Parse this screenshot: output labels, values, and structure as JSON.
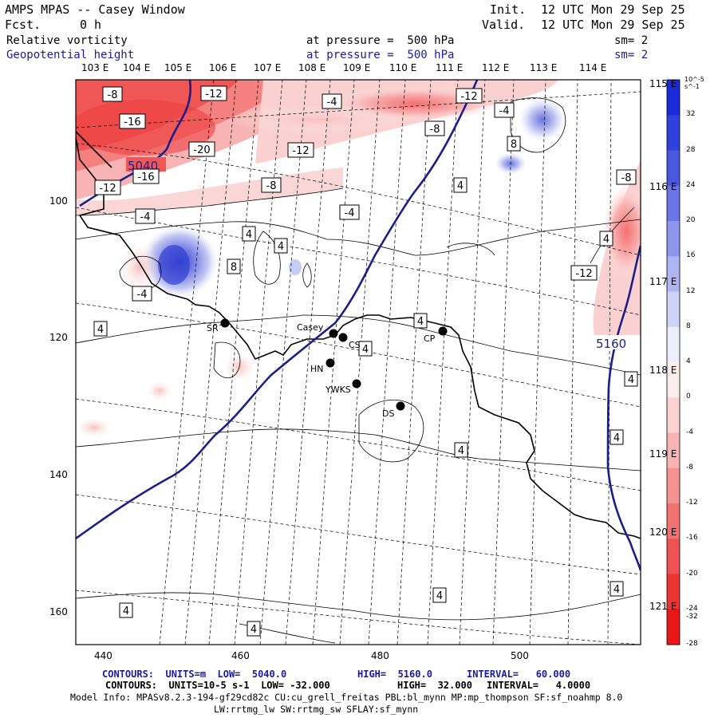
{
  "header": {
    "model_line": "AMPS MPAS -- Casey Window",
    "fcst_label": "Fcst.",
    "fcst_value": "0 h",
    "init_label": "Init.",
    "init_value": "12 UTC Mon 29 Sep 25",
    "valid_label": "Valid.",
    "valid_value": "12 UTC Mon 29 Sep 25",
    "field1_name": "Relative vorticity",
    "field1_level": "at pressure =  500 hPa",
    "field1_sm": "sm= 2",
    "field2_name": "Geopotential height",
    "field2_level": "at pressure =  500 hPa",
    "field2_sm": "sm= 2"
  },
  "map": {
    "lon_labels_top": [
      "103 E",
      "104 E",
      "105 E",
      "106 E",
      "107 E",
      "108 E",
      "109 E",
      "110 E",
      "111 E",
      "112 E",
      "113 E",
      "114 E"
    ],
    "lon_labels_right": [
      "115 E",
      "116 E",
      "117 E",
      "118 E",
      "119 E",
      "120 E",
      "121 E"
    ],
    "x_ticks": [
      "440",
      "460",
      "480",
      "500"
    ],
    "y_ticks": [
      "100",
      "120",
      "140",
      "160"
    ],
    "height_contour_labels": [
      "5040",
      "5160"
    ],
    "vorticity_labels": [
      "-8",
      "-12",
      "-4",
      "-12",
      "-16",
      "-8",
      "-20",
      "-12",
      "-16",
      "-12",
      "-8",
      "-4",
      "-4",
      "4",
      "4",
      "8",
      "-4",
      "4",
      "8",
      "4",
      "-8",
      "-12",
      "-4",
      "4",
      "4",
      "4",
      "4",
      "4",
      "4",
      "4",
      "4",
      "4",
      "4"
    ],
    "stations": [
      {
        "code": "SR"
      },
      {
        "code": "Casey"
      },
      {
        "code": "CS"
      },
      {
        "code": "HN"
      },
      {
        "code": "YWKS"
      },
      {
        "code": "DS"
      },
      {
        "code": "CP"
      }
    ],
    "colorbar": {
      "units": "10^-5 s^-1",
      "labels": [
        "32",
        "28",
        "24",
        "20",
        "16",
        "12",
        "8",
        "4",
        "0",
        "-4",
        "-8",
        "-12",
        "-16",
        "-20",
        "-24",
        "-28",
        "-32"
      ]
    },
    "colors": {
      "height_contour": "#1a1f8c",
      "coast": "#000000",
      "neg_strong": "#f03a3a",
      "pos_strong": "#2e3bd6"
    }
  },
  "footer": {
    "line1_contours": "CONTOURS:  UNITS=m  LOW=  5040.0",
    "line1_high": "HIGH=  5160.0",
    "line1_interval": "INTERVAL=   60.000",
    "line2_contours": "CONTOURS:  UNITS=10-5 s-1  LOW= -32.000",
    "line2_high": "HIGH=  32.000",
    "line2_interval": "INTERVAL=   4.0000",
    "line3": "Model Info: MPASv8.2.3-194-gf29cd82c CU:cu_grell_freitas PBL:bl_mynn MP:mp_thompson SF:sf_noahmp 8.0",
    "line4": "LW:rrtmg_lw SW:rrtmg_sw SFLAY:sf_mynn"
  }
}
